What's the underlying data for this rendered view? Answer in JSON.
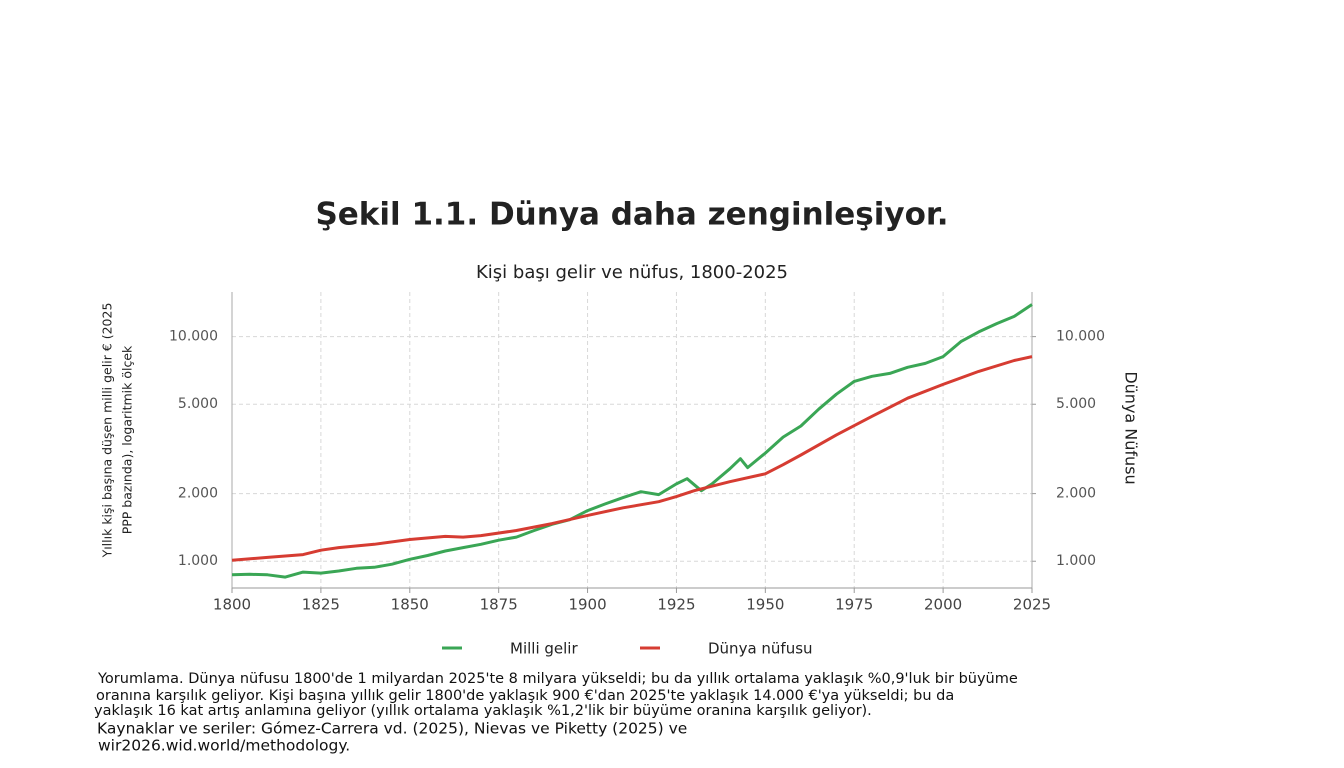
{
  "chart_data": {
    "type": "line",
    "title": "Şekil 1.1. Dünya daha zenginleşiyor.",
    "subtitle": "Kişi başı gelir ve nüfus, 1800-2025",
    "ylabel": [
      "Yıllık kişi başına düşen milli gelir € (2025",
      "PPP bazında), logaritmik ölçek"
    ],
    "y2label": "Dünya Nüfusu",
    "log_scale": true,
    "grid": true,
    "legend": "bottom",
    "xlim": [
      1800,
      2025
    ],
    "xticks": [
      1800,
      1825,
      1850,
      1875,
      1900,
      1925,
      1950,
      1975,
      2000,
      2025
    ],
    "ylim": [
      760,
      15800
    ],
    "yticks": [
      {
        "value": 1000,
        "label": "1.000"
      },
      {
        "value": 2000,
        "label": "2.000"
      },
      {
        "value": 5000,
        "label": "5.000"
      },
      {
        "value": 10000,
        "label": "10.000"
      }
    ],
    "y2lim": [
      760,
      15800
    ],
    "y2ticks": [
      {
        "value": 1000,
        "label": "1.000"
      },
      {
        "value": 2000,
        "label": "2.000"
      },
      {
        "value": 5000,
        "label": "5.000"
      },
      {
        "value": 10000,
        "label": "10.000"
      }
    ],
    "series": [
      {
        "name": "Milli gelir",
        "color": "#3aa655",
        "x": [
          1800,
          1805,
          1810,
          1815,
          1820,
          1825,
          1830,
          1835,
          1840,
          1845,
          1850,
          1855,
          1860,
          1865,
          1870,
          1875,
          1880,
          1885,
          1890,
          1895,
          1900,
          1905,
          1910,
          1915,
          1920,
          1925,
          1928,
          1932,
          1935,
          1940,
          1943,
          1945,
          1950,
          1955,
          1960,
          1965,
          1970,
          1975,
          1980,
          1985,
          1990,
          1995,
          2000,
          2005,
          2010,
          2015,
          2020,
          2025
        ],
        "values": [
          870,
          875,
          870,
          850,
          895,
          885,
          905,
          930,
          940,
          970,
          1020,
          1060,
          1110,
          1150,
          1190,
          1240,
          1280,
          1370,
          1460,
          1530,
          1680,
          1800,
          1920,
          2040,
          1980,
          2210,
          2330,
          2060,
          2210,
          2580,
          2860,
          2610,
          3030,
          3570,
          4000,
          4750,
          5540,
          6320,
          6660,
          6860,
          7300,
          7600,
          8150,
          9500,
          10500,
          11400,
          12300,
          13900
        ]
      },
      {
        "name": "Dünya nüfusu",
        "color": "#d63c32",
        "axis": "y2",
        "x": [
          1800,
          1810,
          1820,
          1825,
          1830,
          1840,
          1850,
          1860,
          1865,
          1870,
          1880,
          1890,
          1900,
          1910,
          1920,
          1925,
          1930,
          1940,
          1950,
          1955,
          1960,
          1970,
          1980,
          1990,
          2000,
          2010,
          2020,
          2025
        ],
        "values": [
          1010,
          1040,
          1070,
          1120,
          1150,
          1190,
          1250,
          1290,
          1280,
          1300,
          1370,
          1470,
          1600,
          1730,
          1840,
          1940,
          2060,
          2260,
          2450,
          2690,
          2970,
          3650,
          4420,
          5320,
          6130,
          7000,
          7830,
          8150
        ]
      }
    ],
    "notes": [
      "Yorumlama. Dünya nüfusu 1800'de 1 milyardan 2025'te 8 milyara yükseldi; bu da yıllık ortalama yaklaşık %0,9'luk bir büyüme",
      "oranına karşılık geliyor. Kişi başına yıllık gelir 1800'de yaklaşık 900 €'dan 2025'te yaklaşık 14.000 €'ya yükseldi; bu da",
      "yaklaşık 16 kat artış anlamına geliyor (yıllık ortalama yaklaşık %1,2'lik bir büyüme oranına karşılık geliyor).",
      "Kaynaklar ve seriler: Gómez-Carrera vd. (2025), Nievas ve Piketty (2025) ve",
      "wir2026.wid.world/methodology."
    ]
  }
}
